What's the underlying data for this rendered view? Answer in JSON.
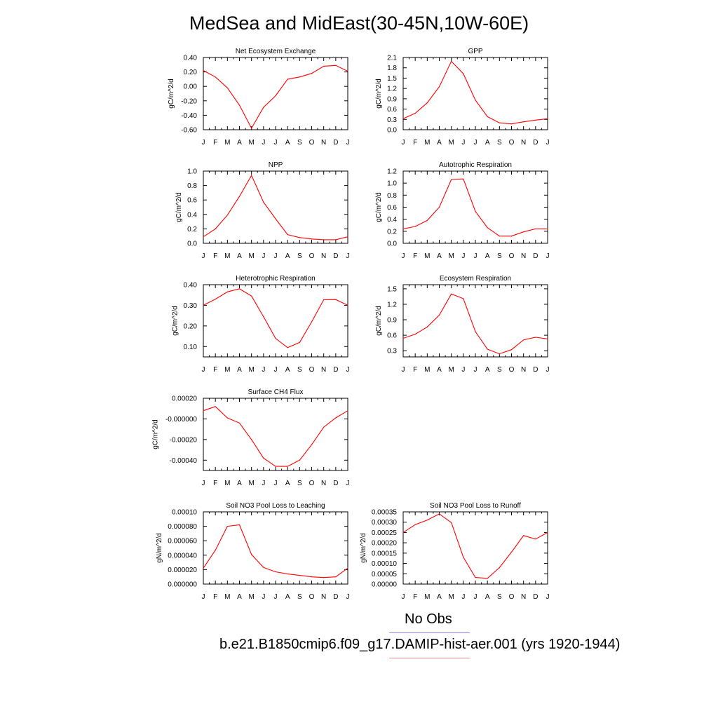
{
  "title": "MedSea and MidEast(30-45N,10W-60E)",
  "colors": {
    "model": "#ff0000",
    "obs": "#0000ff",
    "axis": "#000000"
  },
  "legend": {
    "obs_label": "No Obs",
    "obs_color": "#8888ee",
    "model_label": "b.e21.B1850cmip6.f09_g17.DAMIP-hist-aer.001 (yrs 1920-1944)",
    "model_color": "#ee8888"
  },
  "chart_data": [
    {
      "type": "line",
      "title": "Net Ecosystem Exchange",
      "ylabel": "gC/m^2/d",
      "categories": [
        "J",
        "F",
        "M",
        "A",
        "M",
        "J",
        "J",
        "A",
        "S",
        "O",
        "N",
        "D",
        "J"
      ],
      "ylim": [
        -0.6,
        0.4
      ],
      "yticks": [
        0.4,
        0.2,
        0.0,
        -0.2,
        -0.4,
        -0.6
      ],
      "yticklabels": [
        "0.40",
        "0.20",
        "0.00",
        "-0.20",
        "-0.40",
        "-0.60"
      ],
      "values": [
        0.22,
        0.13,
        -0.02,
        -0.26,
        -0.58,
        -0.29,
        -0.13,
        0.1,
        0.13,
        0.18,
        0.28,
        0.29,
        0.21
      ]
    },
    {
      "type": "line",
      "title": "GPP",
      "ylabel": "gC/m^2/d",
      "categories": [
        "J",
        "F",
        "M",
        "A",
        "M",
        "J",
        "J",
        "A",
        "S",
        "O",
        "N",
        "D",
        "J"
      ],
      "ylim": [
        0.0,
        2.1
      ],
      "yticks": [
        2.1,
        1.8,
        1.5,
        1.2,
        0.9,
        0.6,
        0.3,
        0.0
      ],
      "yticklabels": [
        "2.1",
        "1.8",
        "1.5",
        "1.2",
        "0.9",
        "0.6",
        "0.3",
        "0.0"
      ],
      "values": [
        0.32,
        0.48,
        0.78,
        1.25,
        1.99,
        1.63,
        0.86,
        0.38,
        0.2,
        0.17,
        0.23,
        0.28,
        0.32
      ]
    },
    {
      "type": "line",
      "title": "NPP",
      "ylabel": "gC/m^2/d",
      "categories": [
        "J",
        "F",
        "M",
        "A",
        "M",
        "J",
        "J",
        "A",
        "S",
        "O",
        "N",
        "D",
        "J"
      ],
      "ylim": [
        0.0,
        1.0
      ],
      "yticks": [
        1.0,
        0.8,
        0.6,
        0.4,
        0.2,
        0.0
      ],
      "yticklabels": [
        "1.0",
        "0.8",
        "0.6",
        "0.4",
        "0.2",
        "0.0"
      ],
      "values": [
        0.09,
        0.2,
        0.39,
        0.65,
        0.94,
        0.57,
        0.34,
        0.12,
        0.08,
        0.06,
        0.05,
        0.05,
        0.09
      ]
    },
    {
      "type": "line",
      "title": "Autotrophic Respiration",
      "ylabel": "gC/m^2/d",
      "categories": [
        "J",
        "F",
        "M",
        "A",
        "M",
        "J",
        "J",
        "A",
        "S",
        "O",
        "N",
        "D",
        "J"
      ],
      "ylim": [
        0.0,
        1.2
      ],
      "yticks": [
        1.2,
        1.0,
        0.8,
        0.6,
        0.4,
        0.2,
        0.0
      ],
      "yticklabels": [
        "1.2",
        "1.0",
        "0.8",
        "0.6",
        "0.4",
        "0.2",
        "0.0"
      ],
      "values": [
        0.24,
        0.28,
        0.38,
        0.6,
        1.06,
        1.07,
        0.53,
        0.26,
        0.12,
        0.12,
        0.19,
        0.24,
        0.24
      ]
    },
    {
      "type": "line",
      "title": "Heterotrophic Respiration",
      "ylabel": "gC/m^2/d",
      "categories": [
        "J",
        "F",
        "M",
        "A",
        "M",
        "J",
        "J",
        "A",
        "S",
        "O",
        "N",
        "D",
        "J"
      ],
      "ylim": [
        0.05,
        0.4
      ],
      "yticks": [
        0.4,
        0.3,
        0.2,
        0.1
      ],
      "yticklabels": [
        "0.40",
        "0.30",
        "0.20",
        "0.10"
      ],
      "values": [
        0.3,
        0.33,
        0.365,
        0.38,
        0.345,
        0.245,
        0.14,
        0.095,
        0.12,
        0.22,
        0.327,
        0.328,
        0.3
      ]
    },
    {
      "type": "line",
      "title": "Ecosystem Respiration",
      "ylabel": "gC/m^2/d",
      "categories": [
        "J",
        "F",
        "M",
        "A",
        "M",
        "J",
        "J",
        "A",
        "S",
        "O",
        "N",
        "D",
        "J"
      ],
      "ylim": [
        0.18,
        1.58
      ],
      "yticks": [
        1.5,
        1.2,
        0.9,
        0.6,
        0.3
      ],
      "yticklabels": [
        "1.5",
        "1.2",
        "0.9",
        "0.6",
        "0.3"
      ],
      "values": [
        0.54,
        0.62,
        0.76,
        0.99,
        1.4,
        1.31,
        0.67,
        0.33,
        0.24,
        0.32,
        0.51,
        0.56,
        0.53
      ]
    },
    {
      "type": "line",
      "title": "Surface CH4 Flux",
      "ylabel": "gC/m^2/d",
      "categories": [
        "J",
        "F",
        "M",
        "A",
        "M",
        "J",
        "J",
        "A",
        "S",
        "O",
        "N",
        "D",
        "J"
      ],
      "ylim": [
        -0.0005,
        0.0002
      ],
      "yticks": [
        0.0002,
        0.0,
        -0.0002,
        -0.0004
      ],
      "yticklabels": [
        "0.00020",
        "-0.000000",
        "-0.00020",
        "-0.00040"
      ],
      "values": [
        8e-05,
        0.00012,
        1e-05,
        -4e-05,
        -0.0002,
        -0.00038,
        -0.00046,
        -0.00046,
        -0.0004,
        -0.00025,
        -8e-05,
        1e-05,
        8e-05
      ]
    },
    {
      "type": "line",
      "title": "Soil NO3 Pool Loss to Leaching",
      "ylabel": "gN/m^2/d",
      "categories": [
        "J",
        "F",
        "M",
        "A",
        "M",
        "J",
        "J",
        "A",
        "S",
        "O",
        "N",
        "D",
        "J"
      ],
      "ylim": [
        0.0,
        0.0001
      ],
      "yticks": [
        0.0001,
        8e-05,
        6e-05,
        4e-05,
        2e-05,
        0.0
      ],
      "yticklabels": [
        "0.00010",
        "0.000080",
        "0.000060",
        "0.000040",
        "0.000020",
        "0.000000"
      ],
      "values": [
        2.2e-05,
        4.7e-05,
        8e-05,
        8.2e-05,
        4.1e-05,
        2.3e-05,
        1.7e-05,
        1.4e-05,
        1.2e-05,
        1e-05,
        9e-06,
        1e-05,
        2.2e-05
      ]
    },
    {
      "type": "line",
      "title": "Soil NO3 Pool Loss to Runoff",
      "ylabel": "gN/m^2/d",
      "categories": [
        "J",
        "F",
        "M",
        "A",
        "M",
        "J",
        "J",
        "A",
        "S",
        "O",
        "N",
        "D",
        "J"
      ],
      "ylim": [
        0.0,
        0.00035
      ],
      "yticks": [
        0.00035,
        0.0003,
        0.00025,
        0.0002,
        0.00015,
        0.0001,
        5e-05,
        0.0
      ],
      "yticklabels": [
        "0.00035",
        "0.00030",
        "0.00025",
        "0.00020",
        "0.00015",
        "0.00010",
        "0.00005",
        "0.00000"
      ],
      "values": [
        0.00025,
        0.000288,
        0.00031,
        0.00034,
        0.000298,
        0.00013,
        3.2e-05,
        2.8e-05,
        8e-05,
        0.000155,
        0.000235,
        0.000218,
        0.00025
      ]
    }
  ]
}
